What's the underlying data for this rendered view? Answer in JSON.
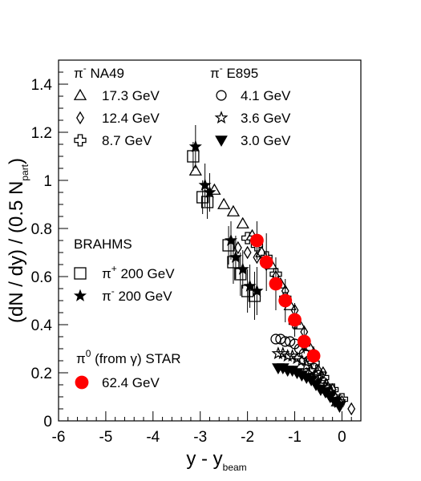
{
  "chart_data": {
    "type": "scatter",
    "title": "",
    "xlabel": {
      "main": "y - y",
      "sub": "beam"
    },
    "ylabel": {
      "main": "(dN / dy) / (0.5 N",
      "sub": "part",
      "close": ")"
    },
    "xlim": [
      -6,
      0.4
    ],
    "ylim": [
      0,
      1.5
    ],
    "xticks": [
      -6,
      -5,
      -4,
      -3,
      -2,
      -1,
      0
    ],
    "yticks": [
      0,
      0.2,
      0.4,
      0.6,
      0.8,
      1,
      1.2,
      1.4
    ],
    "grid": false,
    "legend_groups": [
      {
        "header": {
          "main": "π",
          "sup": "-",
          "rest": " NA49"
        },
        "series": [
          0,
          1,
          2
        ]
      },
      {
        "header": {
          "main": "π",
          "sup": "-",
          "rest": " E895"
        },
        "series": [
          3,
          4,
          5
        ]
      },
      {
        "header": {
          "main": "BRAHMS",
          "sup": "",
          "rest": ""
        },
        "series": [
          6,
          7
        ]
      },
      {
        "header": {
          "main": "π",
          "sup": "0",
          "rest": " (from γ)  STAR"
        },
        "series": [
          8
        ]
      }
    ],
    "series": [
      {
        "name": "17.3 GeV",
        "marker": "triangle-open",
        "color": "#000000",
        "x": [
          -3.1,
          -2.7,
          -2.5,
          -2.3,
          -2.1,
          -1.9,
          -1.7,
          -1.5,
          -1.3,
          -1.1,
          -0.9,
          -0.7,
          -0.5,
          -0.3,
          -0.1
        ],
        "y": [
          1.04,
          0.96,
          0.9,
          0.87,
          0.82,
          0.77,
          0.7,
          0.65,
          0.57,
          0.48,
          0.4,
          0.31,
          0.21,
          0.14,
          0.08
        ]
      },
      {
        "name": "12.4 GeV",
        "marker": "diamond-open",
        "color": "#000000",
        "x": [
          -2.2,
          -2.0,
          -1.8,
          -1.6,
          -1.4,
          -1.2,
          -1.0,
          -0.8,
          -0.6,
          -0.4,
          -0.2,
          0.0,
          0.2
        ],
        "y": [
          0.72,
          0.7,
          0.68,
          0.65,
          0.6,
          0.54,
          0.46,
          0.37,
          0.28,
          0.2,
          0.13,
          0.08,
          0.05
        ]
      },
      {
        "name": "8.7 GeV",
        "marker": "cross-open",
        "color": "#000000",
        "x": [
          -2.0,
          -1.8,
          -1.6,
          -1.4,
          -1.2,
          -1.0,
          -0.8,
          -0.6,
          -0.4,
          -0.2,
          0.0
        ],
        "y": [
          0.76,
          0.73,
          0.68,
          0.61,
          0.51,
          0.41,
          0.32,
          0.24,
          0.18,
          0.13,
          0.09
        ]
      },
      {
        "name": "4.1 GeV",
        "marker": "circle-open",
        "color": "#000000",
        "x": [
          -1.4,
          -1.3,
          -1.2,
          -1.1,
          -1.0,
          -0.9,
          -0.8,
          -0.7,
          -0.6,
          -0.5,
          -0.4,
          -0.3,
          -0.2,
          -0.1
        ],
        "y": [
          0.34,
          0.34,
          0.33,
          0.33,
          0.32,
          0.3,
          0.28,
          0.25,
          0.22,
          0.19,
          0.16,
          0.13,
          0.1,
          0.08
        ]
      },
      {
        "name": "3.6 GeV",
        "marker": "star-open",
        "color": "#000000",
        "x": [
          -1.35,
          -1.25,
          -1.15,
          -1.05,
          -0.95,
          -0.85,
          -0.75,
          -0.65,
          -0.55,
          -0.45,
          -0.35,
          -0.25,
          -0.15,
          -0.05
        ],
        "y": [
          0.28,
          0.28,
          0.27,
          0.27,
          0.26,
          0.25,
          0.23,
          0.21,
          0.19,
          0.16,
          0.14,
          0.12,
          0.1,
          0.08
        ]
      },
      {
        "name": "3.0 GeV",
        "marker": "triangle-down-filled",
        "color": "#000000",
        "x": [
          -1.35,
          -1.25,
          -1.15,
          -1.05,
          -0.95,
          -0.85,
          -0.75,
          -0.65,
          -0.55,
          -0.45,
          -0.35,
          -0.25,
          -0.15,
          -0.05
        ],
        "y": [
          0.22,
          0.22,
          0.21,
          0.21,
          0.2,
          0.19,
          0.18,
          0.17,
          0.15,
          0.13,
          0.12,
          0.1,
          0.08,
          0.06
        ]
      },
      {
        "name": {
          "main": "π",
          "sup": "+",
          "rest": " 200 GeV"
        },
        "marker": "square-open",
        "color": "#000000",
        "x": [
          -3.15,
          -2.95,
          -2.85,
          -2.4,
          -2.3,
          -2.15,
          -2.0,
          -1.85
        ],
        "y": [
          1.1,
          0.93,
          0.91,
          0.73,
          0.66,
          0.61,
          0.54,
          0.52
        ],
        "yerr": [
          0.06,
          0.07,
          0.07,
          0.08,
          0.09,
          0.09,
          0.09,
          0.1
        ]
      },
      {
        "name": {
          "main": "π",
          "sup": "-",
          "rest": " 200 GeV"
        },
        "marker": "star-filled",
        "color": "#000000",
        "x": [
          -3.1,
          -2.9,
          -2.8,
          -2.35,
          -2.25,
          -2.1,
          -1.95,
          -1.8
        ],
        "y": [
          1.14,
          0.98,
          0.95,
          0.75,
          0.68,
          0.63,
          0.56,
          0.54
        ],
        "yerr": [
          0.09,
          0.09,
          0.08,
          0.08,
          0.09,
          0.08,
          0.09,
          0.1
        ]
      },
      {
        "name": "62.4 GeV",
        "marker": "circle-filled",
        "color": "#ff0000",
        "x": [
          -1.8,
          -1.6,
          -1.4,
          -1.2,
          -1.0,
          -0.8,
          -0.6
        ],
        "y": [
          0.75,
          0.66,
          0.57,
          0.5,
          0.42,
          0.33,
          0.27
        ],
        "yerr": [
          0.08,
          0.12,
          0.11,
          0.09,
          0.07,
          0.05,
          0.04
        ]
      }
    ]
  }
}
